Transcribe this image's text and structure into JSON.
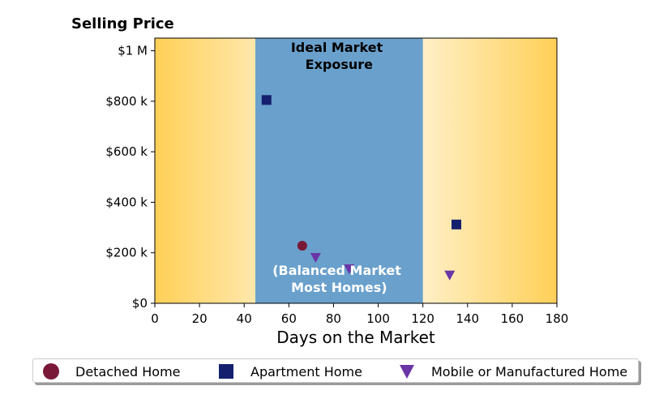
{
  "chart_data": {
    "type": "scatter",
    "title": "Selling Price",
    "xlabel": "Days on the Market",
    "ylabel": "",
    "xlim": [
      0,
      180
    ],
    "ylim": [
      0,
      1050000
    ],
    "x_ticks": [
      0,
      20,
      40,
      60,
      80,
      100,
      120,
      140,
      160,
      180
    ],
    "y_ticks": [
      0,
      200000,
      400000,
      600000,
      800000,
      1000000
    ],
    "y_tick_labels": [
      "$0",
      "$200 k",
      "$400 k",
      "$600 k",
      "$800 k",
      "$1 M"
    ],
    "background_gradient": {
      "edge_color": "#ffd057",
      "center_color": "#ffffff"
    },
    "band": {
      "x_range": [
        45,
        120
      ],
      "color": "#6aa0cc",
      "label_top_lines": [
        "Ideal Market",
        "Exposure"
      ],
      "label_bottom_lines": [
        "(Balanced Market",
        "Most Homes)"
      ]
    },
    "series": [
      {
        "name": "Detached Home",
        "marker": "circle",
        "color": "#7a1838",
        "points": [
          {
            "x": 66,
            "y": 228000
          }
        ]
      },
      {
        "name": "Apartment Home",
        "marker": "square",
        "color": "#14206e",
        "points": [
          {
            "x": 50,
            "y": 805000
          },
          {
            "x": 135,
            "y": 312000
          }
        ]
      },
      {
        "name": "Mobile or Manufactured Home",
        "marker": "triangle-down",
        "color": "#6a35a6",
        "points": [
          {
            "x": 72,
            "y": 180000
          },
          {
            "x": 87,
            "y": 135000
          },
          {
            "x": 132,
            "y": 110000
          }
        ]
      }
    ]
  }
}
